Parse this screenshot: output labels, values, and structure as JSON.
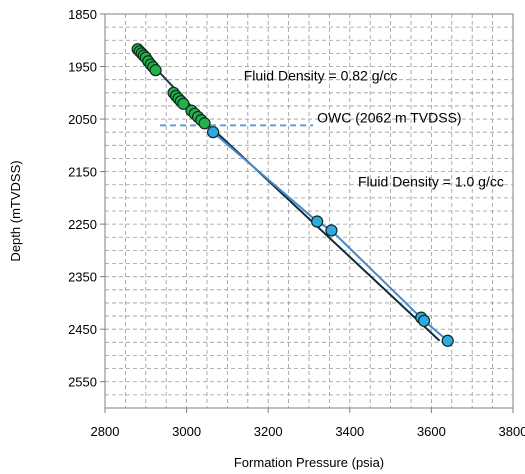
{
  "chart_data": {
    "type": "scatter",
    "title": "",
    "xlabel": "Formation Pressure (psia)",
    "ylabel": "Depth (mTVDSS)",
    "xlim": [
      2800,
      3800
    ],
    "ylim": [
      1850,
      2600
    ],
    "y_inverted": true,
    "xticks": [
      "2800",
      "3000",
      "3200",
      "3400",
      "3600",
      "3800"
    ],
    "yticks": [
      "1850",
      "1950",
      "2050",
      "2150",
      "2250",
      "2350",
      "2450",
      "2550"
    ],
    "grid": true,
    "grid_style": "dashed",
    "series": [
      {
        "kind": "points",
        "color": "#22b24c",
        "points": [
          [
            2880,
            1917
          ],
          [
            2885,
            1921
          ],
          [
            2890,
            1925
          ],
          [
            2895,
            1929
          ],
          [
            2900,
            1933
          ],
          [
            2906,
            1940
          ],
          [
            2912,
            1946
          ],
          [
            2918,
            1951
          ],
          [
            2924,
            1957
          ],
          [
            2968,
            2000
          ],
          [
            2974,
            2006
          ],
          [
            2980,
            2011
          ],
          [
            2986,
            2016
          ],
          [
            2992,
            2021
          ],
          [
            3012,
            2034
          ],
          [
            3020,
            2040
          ],
          [
            3028,
            2046
          ],
          [
            3036,
            2052
          ],
          [
            3044,
            2058
          ]
        ]
      },
      {
        "kind": "points",
        "color": "#2ea9e6",
        "points": [
          [
            3065,
            2075
          ],
          [
            3320,
            2245
          ],
          [
            3355,
            2262
          ],
          [
            3575,
            2428
          ],
          [
            3582,
            2434
          ],
          [
            3640,
            2472
          ]
        ]
      },
      {
        "kind": "line",
        "color": "#0b2f3e",
        "points": [
          [
            3055,
            2062
          ],
          [
            3620,
            2472
          ]
        ]
      },
      {
        "kind": "line",
        "color": "#4a88c7",
        "points": [
          [
            3065,
            2075
          ],
          [
            3320,
            2245
          ],
          [
            3355,
            2262
          ],
          [
            3582,
            2434
          ],
          [
            3640,
            2472
          ]
        ]
      },
      {
        "kind": "line",
        "color": "#1a3a48",
        "points": [
          [
            2878,
            1915
          ],
          [
            3060,
            2066
          ]
        ]
      }
    ],
    "owc_line": {
      "y": 2062,
      "x_start": 2935,
      "x_end": 3310,
      "color": "#6a9ad2"
    },
    "annotations": [
      {
        "text": "Fluid  Density = 0.82 g/cc",
        "x": 3140,
        "y": 1977
      },
      {
        "text": "OWC (2062 m TVDSS)",
        "x": 3320,
        "y": 2057
      },
      {
        "text": "Fluid  Density = 1.0 g/cc",
        "x": 3420,
        "y": 2178
      }
    ]
  }
}
